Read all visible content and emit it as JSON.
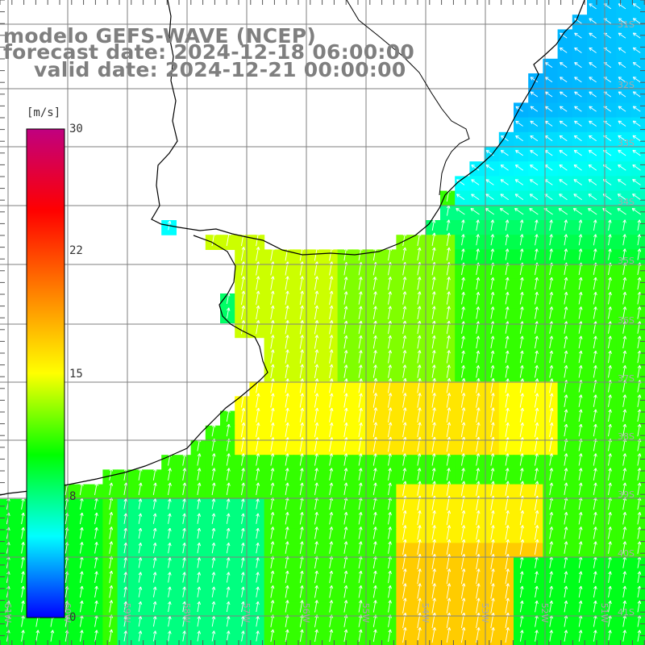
{
  "title": {
    "line1": "modelo GEFS-WAVE (NCEP)",
    "line2": "forecast date: 2024-12-18 06:00:00",
    "line3": "valid date: 2024-12-21 00:00:00"
  },
  "colorbar": {
    "unit": "[m/s]",
    "ticks": [
      "30",
      "22",
      "15",
      "8",
      "0"
    ],
    "min": 0,
    "max": 30,
    "colors": [
      "#0000ff",
      "#00ffff",
      "#00ff00",
      "#ffff00",
      "#ff8000",
      "#ff0000",
      "#c00080"
    ]
  },
  "axes": {
    "lat_labels": [
      "31S",
      "32S",
      "33S",
      "34S",
      "35S",
      "36S",
      "37S",
      "38S",
      "39S",
      "40S",
      "41S"
    ],
    "lon_labels": [
      "61W",
      "60W",
      "59W",
      "58W",
      "57W",
      "56W",
      "55W",
      "54W",
      "53W",
      "52W",
      "51W"
    ]
  },
  "colors": {
    "grid": "#7f7f7f",
    "coast": "#000000",
    "arrow": "#ffffff",
    "title": "#7f7f7f"
  }
}
